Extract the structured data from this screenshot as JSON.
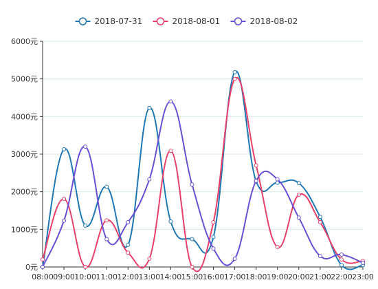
{
  "chart_data": {
    "type": "line",
    "smooth": true,
    "categories": [
      "08:00",
      "09:00",
      "10:00",
      "11:00",
      "12:00",
      "13:00",
      "14:00",
      "15:00",
      "16:00",
      "17:00",
      "18:00",
      "19:00",
      "20:00",
      "21:00",
      "22:00",
      "23:00"
    ],
    "series": [
      {
        "name": "2018-07-31",
        "color": "#1f77b4",
        "values": [
          0,
          3130,
          1100,
          2130,
          590,
          4230,
          1210,
          740,
          800,
          5180,
          2280,
          2240,
          2230,
          1330,
          50,
          50
        ]
      },
      {
        "name": "2018-08-01",
        "color": "#e8406a",
        "values": [
          200,
          1810,
          0,
          1240,
          380,
          220,
          3090,
          0,
          1190,
          5000,
          2700,
          530,
          1920,
          1190,
          200,
          160
        ]
      },
      {
        "name": "2018-08-02",
        "color": "#6a4fd4",
        "values": [
          0,
          1230,
          3200,
          740,
          1190,
          2330,
          4400,
          2190,
          490,
          220,
          2290,
          2330,
          1310,
          290,
          330,
          110
        ]
      }
    ],
    "y_ticks": [
      "0元",
      "1000元",
      "2000元",
      "3000元",
      "4000元",
      "5000元",
      "6000元"
    ],
    "ylim": [
      0,
      6000
    ],
    "grid": true,
    "legend_position": "top"
  }
}
